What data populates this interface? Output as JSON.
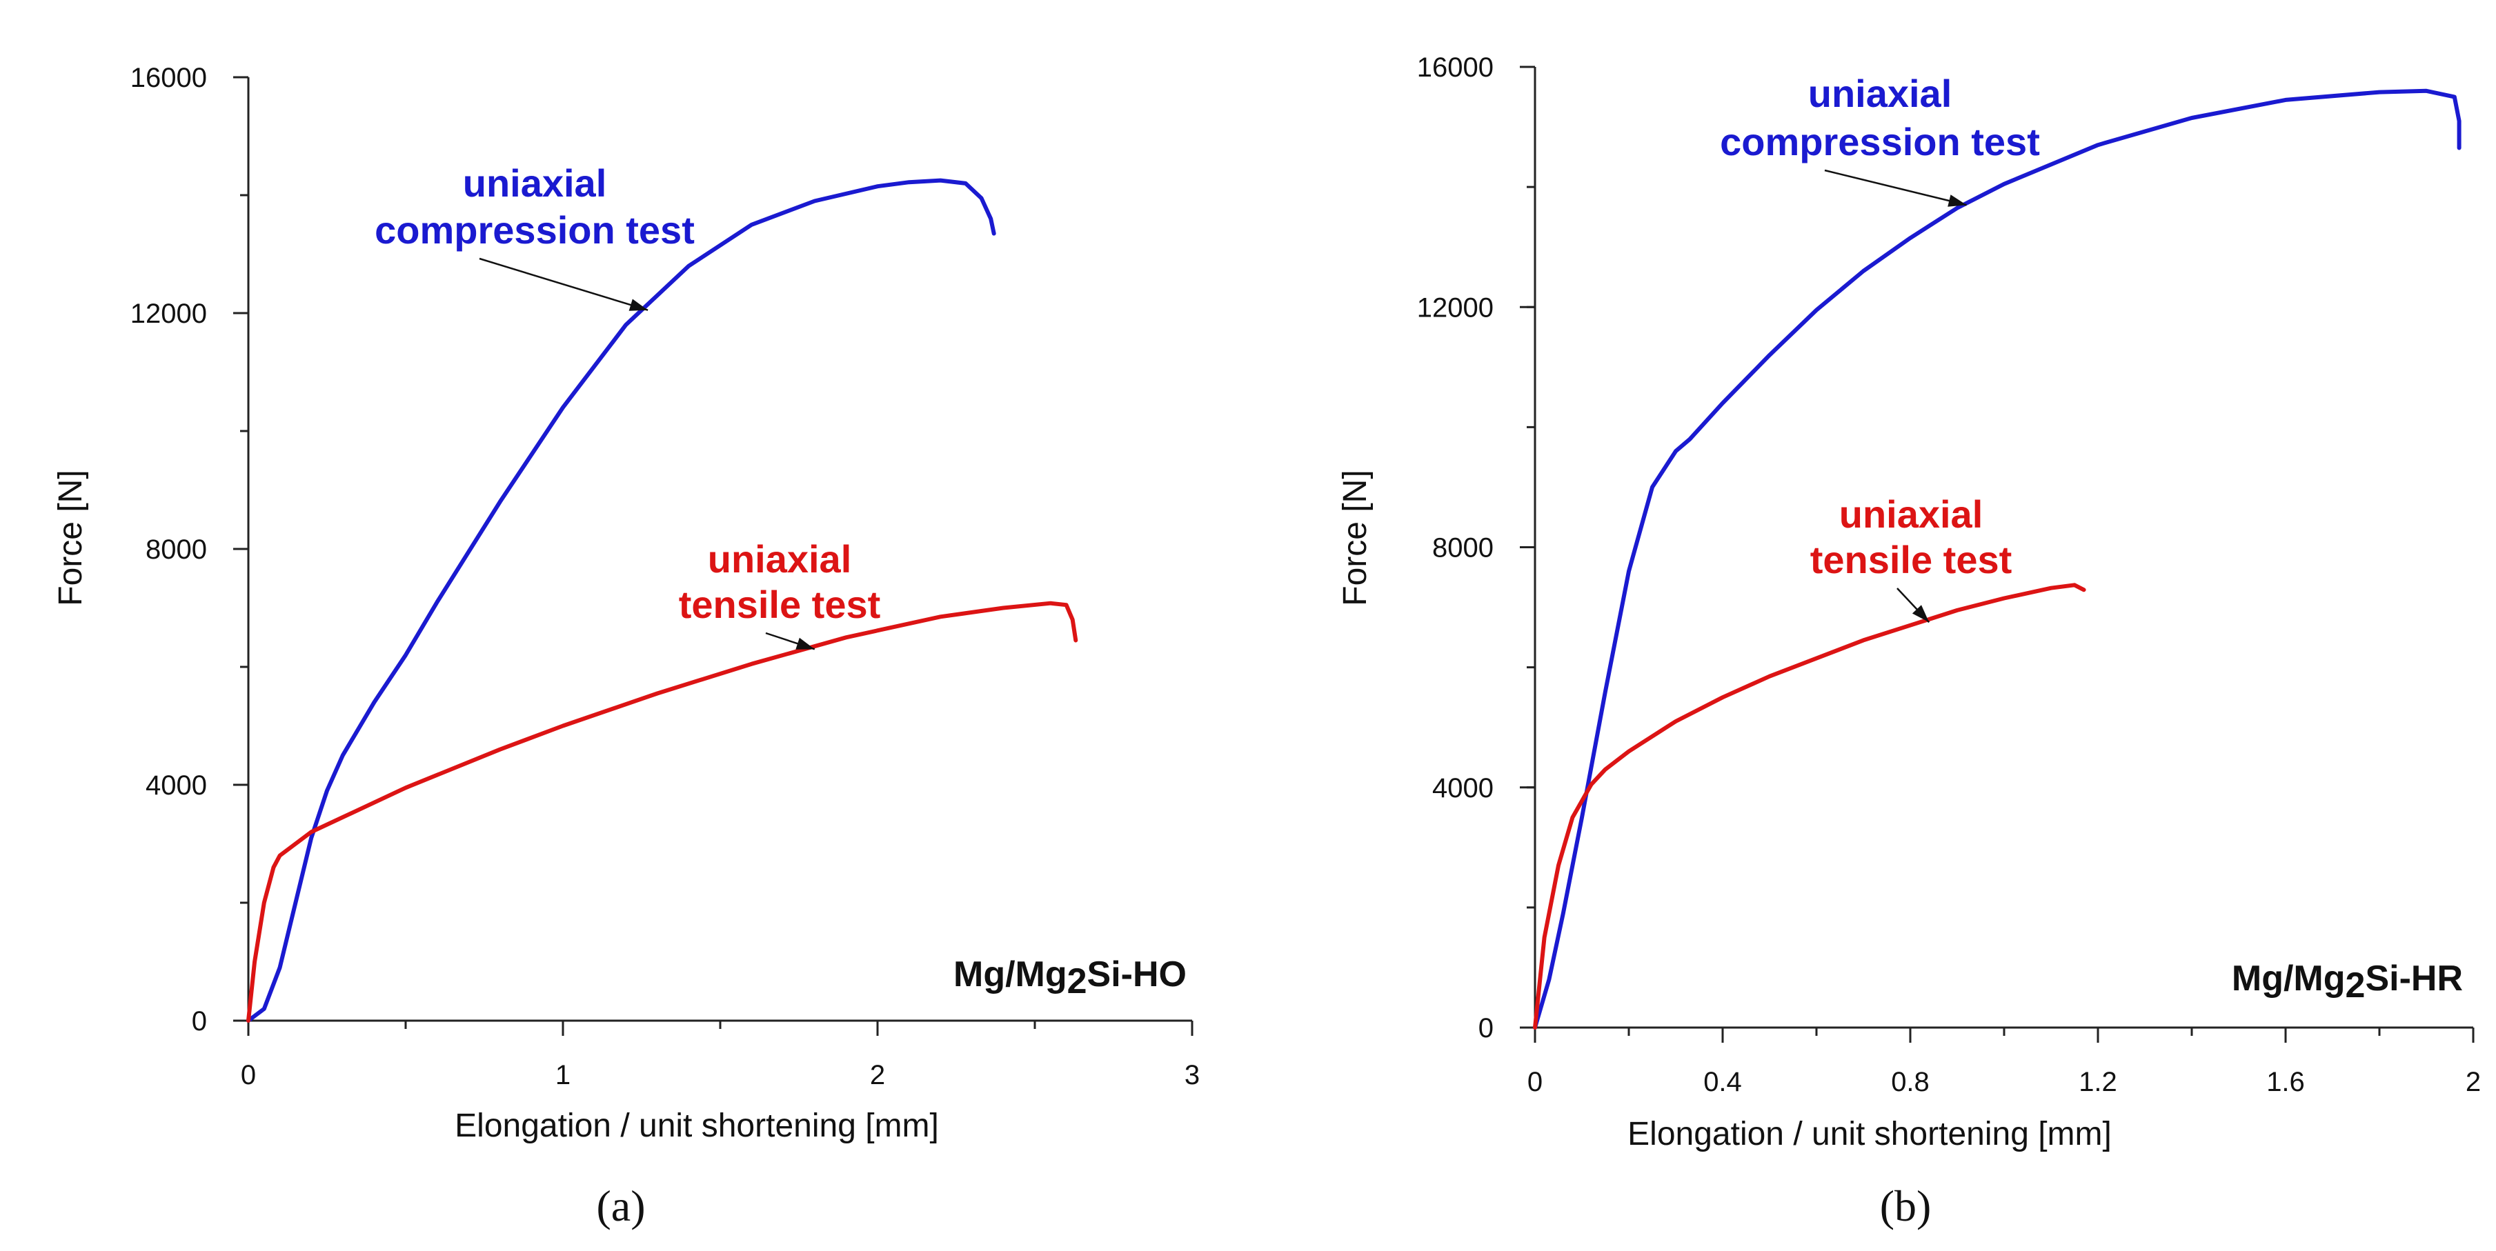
{
  "chart_data": [
    {
      "type": "line",
      "panel_label": "(a)",
      "specimen": {
        "base": "Mg/Mg",
        "sub": "2",
        "suffix": "Si-HO"
      },
      "xlabel": "Elongation / unit shortening [mm]",
      "ylabel": "Force [N]",
      "xlim": [
        0,
        3
      ],
      "ylim": [
        0,
        16000
      ],
      "xticks": [
        0,
        1,
        2,
        3
      ],
      "xtick_labels": [
        "0",
        "1",
        "2",
        "3"
      ],
      "x_minor": 0.5,
      "yticks": [
        0,
        4000,
        8000,
        12000,
        16000
      ],
      "ytick_labels": [
        "0",
        "4000",
        "8000",
        "12000",
        "16000"
      ],
      "y_minor": 2000,
      "grid": false,
      "series": [
        {
          "name": "uniaxial compression test",
          "color": "#1a1ad0",
          "x": [
            0,
            0.05,
            0.1,
            0.15,
            0.2,
            0.25,
            0.3,
            0.4,
            0.5,
            0.6,
            0.8,
            1.0,
            1.2,
            1.4,
            1.6,
            1.8,
            2.0,
            2.1,
            2.2,
            2.28,
            2.33,
            2.36,
            2.37
          ],
          "y": [
            0,
            200,
            900,
            2000,
            3100,
            3900,
            4500,
            5400,
            6200,
            7100,
            8800,
            10400,
            11800,
            12800,
            13500,
            13900,
            14150,
            14220,
            14250,
            14200,
            13950,
            13600,
            13350
          ]
        },
        {
          "name": "uniaxial tensile test",
          "color": "#dc1414",
          "x": [
            0,
            0.02,
            0.05,
            0.08,
            0.1,
            0.15,
            0.2,
            0.3,
            0.5,
            0.8,
            1.0,
            1.3,
            1.6,
            1.9,
            2.2,
            2.4,
            2.55,
            2.6,
            2.62,
            2.63
          ],
          "y": [
            0,
            1000,
            2000,
            2600,
            2800,
            3000,
            3200,
            3450,
            3950,
            4600,
            5000,
            5550,
            6050,
            6500,
            6850,
            7000,
            7080,
            7050,
            6800,
            6450
          ]
        }
      ],
      "annotations": [
        {
          "lines": [
            "uniaxial",
            "compression test"
          ],
          "series": 0,
          "target_x": 1.27,
          "target_y": 12050
        },
        {
          "lines": [
            "uniaxial",
            "tensile test"
          ],
          "series": 1,
          "target_x": 1.8,
          "target_y": 6300
        }
      ]
    },
    {
      "type": "line",
      "panel_label": "(b)",
      "specimen": {
        "base": "Mg/Mg",
        "sub": "2",
        "suffix": "Si-HR"
      },
      "xlabel": "Elongation / unit shortening [mm]",
      "ylabel": "Force [N]",
      "xlim": [
        0,
        2
      ],
      "ylim": [
        0,
        16000
      ],
      "xticks": [
        0,
        0.4,
        0.8,
        1.2,
        1.6,
        2
      ],
      "xtick_labels": [
        "0",
        "0.4",
        "0.8",
        "1.2",
        "1.6",
        "2"
      ],
      "x_minor": 0.2,
      "yticks": [
        0,
        4000,
        8000,
        12000,
        16000
      ],
      "ytick_labels": [
        "0",
        "4000",
        "8000",
        "12000",
        "16000"
      ],
      "y_minor": 2000,
      "grid": false,
      "series": [
        {
          "name": "uniaxial compression test",
          "color": "#1a1ad0",
          "x": [
            0,
            0.03,
            0.06,
            0.1,
            0.15,
            0.2,
            0.25,
            0.3,
            0.33,
            0.4,
            0.5,
            0.6,
            0.7,
            0.8,
            0.9,
            1.0,
            1.2,
            1.4,
            1.6,
            1.8,
            1.9,
            1.96,
            1.97,
            1.97
          ],
          "y": [
            0,
            800,
            1900,
            3500,
            5600,
            7600,
            9000,
            9600,
            9800,
            10400,
            11200,
            11950,
            12600,
            13150,
            13650,
            14050,
            14700,
            15150,
            15450,
            15580,
            15600,
            15500,
            15100,
            14650
          ]
        },
        {
          "name": "uniaxial tensile test",
          "color": "#dc1414",
          "x": [
            0,
            0.02,
            0.05,
            0.08,
            0.12,
            0.15,
            0.2,
            0.3,
            0.4,
            0.5,
            0.6,
            0.7,
            0.8,
            0.9,
            1.0,
            1.1,
            1.15,
            1.17
          ],
          "y": [
            0,
            1500,
            2700,
            3500,
            4050,
            4300,
            4600,
            5100,
            5500,
            5850,
            6150,
            6450,
            6700,
            6950,
            7150,
            7320,
            7370,
            7290
          ]
        }
      ],
      "annotations": [
        {
          "lines": [
            "uniaxial",
            "compression test"
          ],
          "series": 0,
          "target_x": 0.92,
          "target_y": 13700
        },
        {
          "lines": [
            "uniaxial",
            "tensile test"
          ],
          "series": 1,
          "target_x": 0.84,
          "target_y": 6750
        }
      ]
    }
  ]
}
